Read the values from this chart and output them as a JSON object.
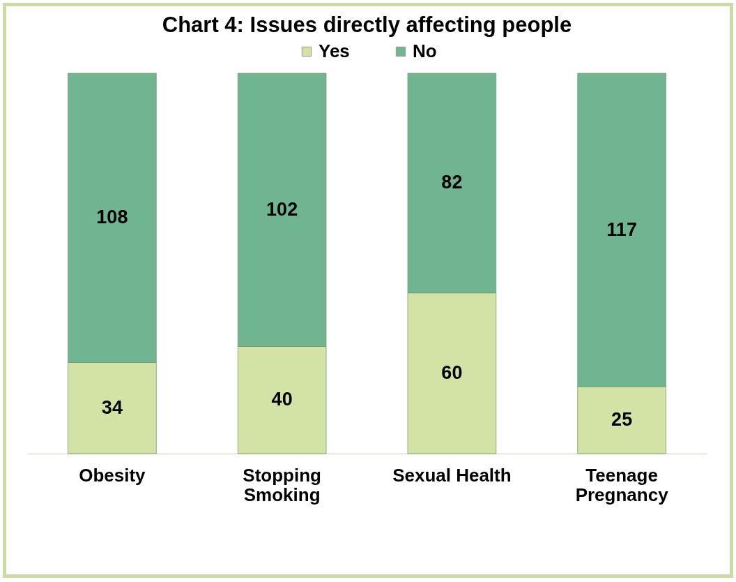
{
  "chart_data": {
    "type": "bar",
    "title": "Chart 4: Issues directly affecting people",
    "categories": [
      "Obesity",
      "Stopping Smoking",
      "Sexual Health",
      "Teenage Pregnancy"
    ],
    "stacked": true,
    "data_labels": true,
    "legend": "top",
    "tick_labels": "x",
    "series": [
      {
        "name": "Yes",
        "color": "#d3e3a6",
        "values": [
          34,
          40,
          60,
          25
        ]
      },
      {
        "name": "No",
        "color": "#6fb591",
        "values": [
          108,
          102,
          82,
          117
        ]
      }
    ]
  }
}
